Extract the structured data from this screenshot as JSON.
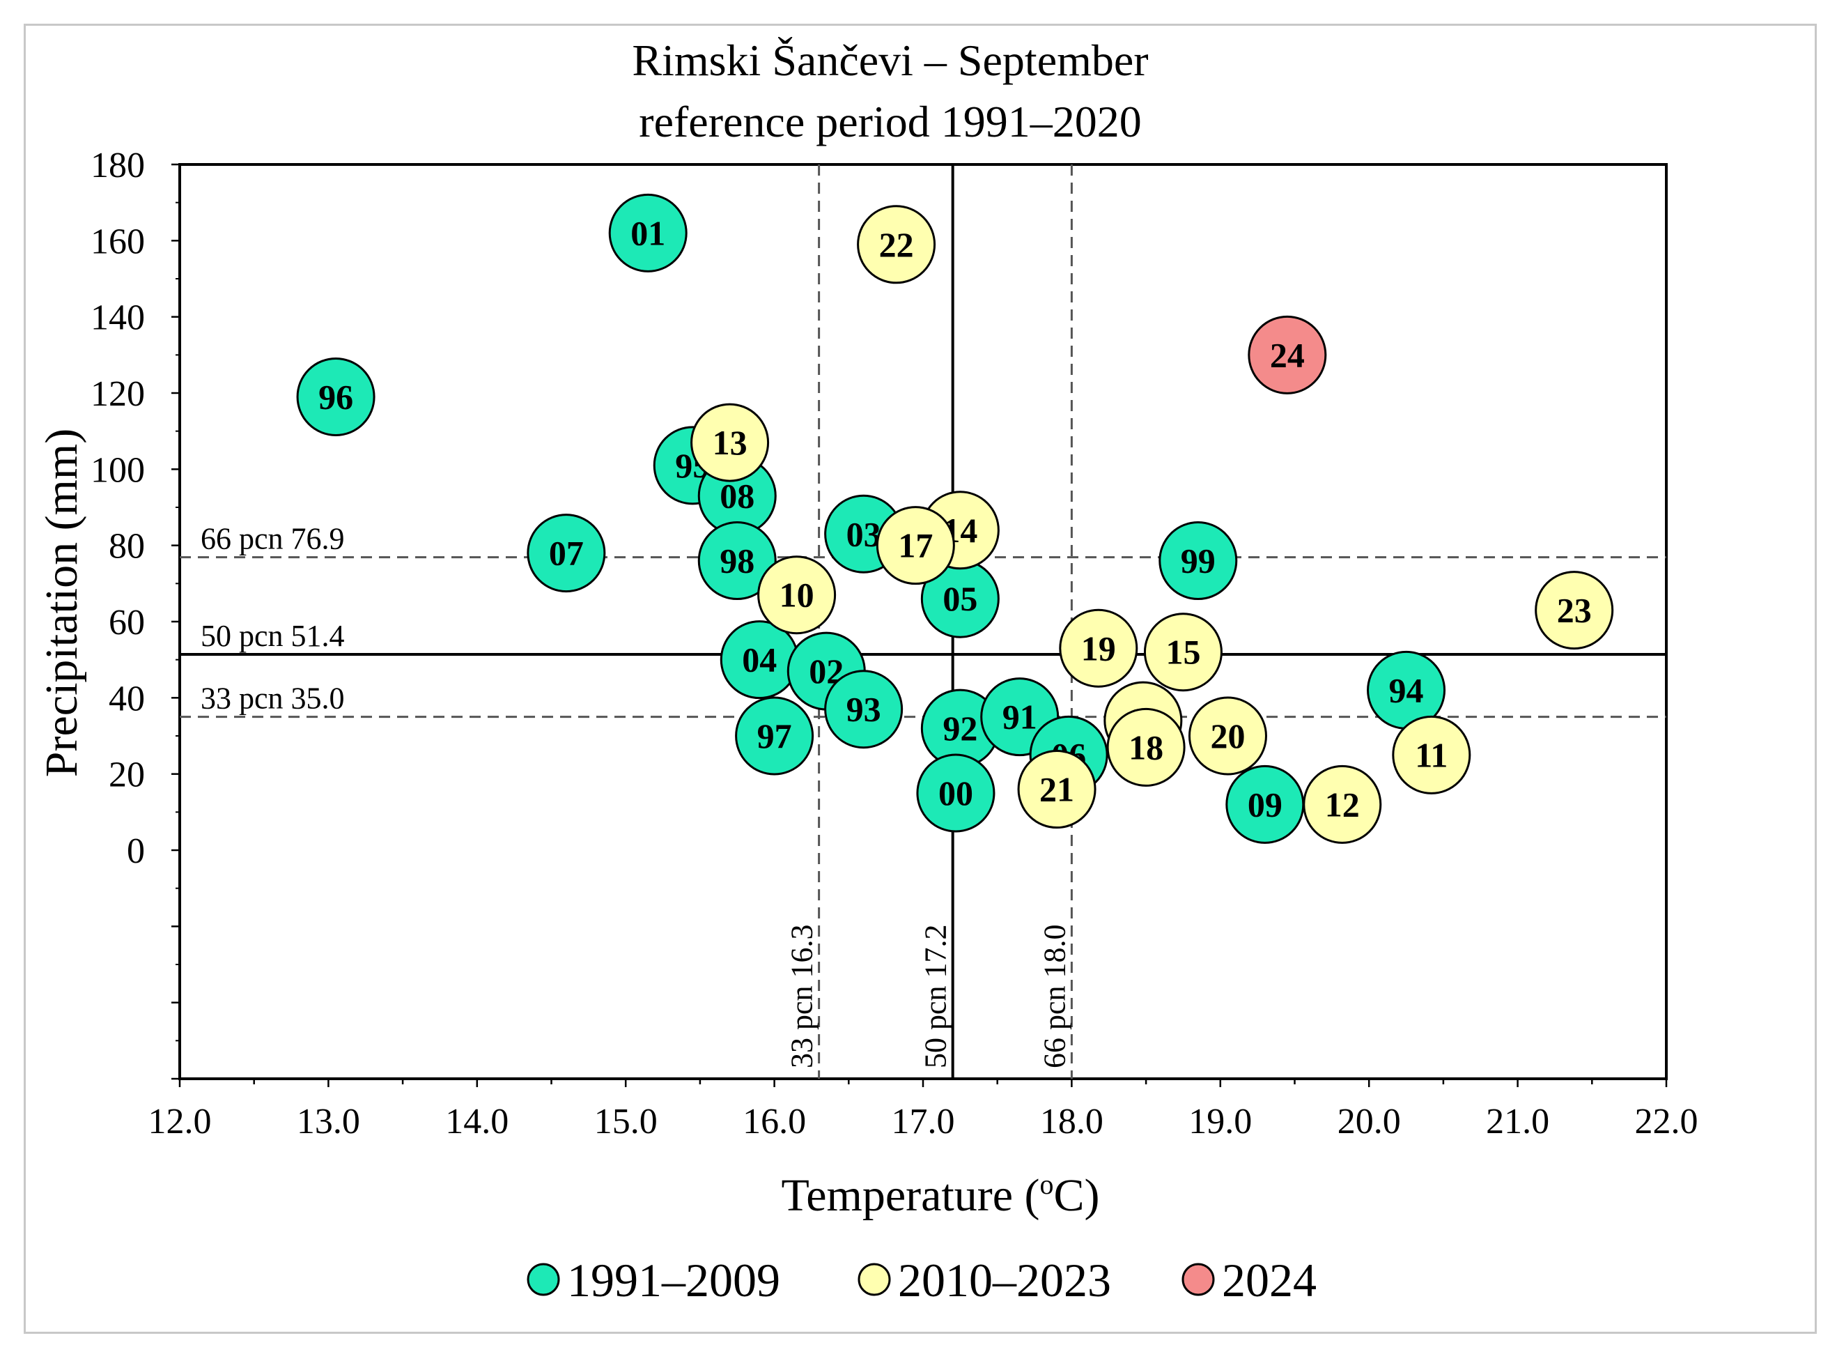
{
  "chart_data": {
    "type": "scatter",
    "title": "Rimski Šančevi – September",
    "subtitle": "reference period 1991–2020",
    "xlabel": "Temperature  (",
    "xlabel_sup": "o",
    "xlabel_end": "C)",
    "ylabel": "Precipitation  (mm)",
    "xlim": [
      12.0,
      22.0
    ],
    "ylim": [
      -60,
      180
    ],
    "x_ticks": [
      "12.0",
      "13.0",
      "14.0",
      "15.0",
      "16.0",
      "17.0",
      "18.0",
      "19.0",
      "20.0",
      "21.0",
      "22.0"
    ],
    "y_ticks": [
      "0",
      "20",
      "40",
      "60",
      "80",
      "100",
      "120",
      "140",
      "160",
      "180"
    ],
    "y_tick_values": [
      0,
      20,
      40,
      60,
      80,
      100,
      120,
      140,
      160,
      180
    ],
    "x_tick_values": [
      12,
      13,
      14,
      15,
      16,
      17,
      18,
      19,
      20,
      21,
      22
    ],
    "percentile_lines": {
      "precipitation": [
        {
          "label": "66  pcn  76.9",
          "value": 76.9,
          "style": "dashed"
        },
        {
          "label": "50  pcn  51.4",
          "value": 51.4,
          "style": "solid"
        },
        {
          "label": "33  pcn  35.0",
          "value": 35.0,
          "style": "dashed"
        }
      ],
      "temperature": [
        {
          "label": "33  pcn  16.3",
          "value": 16.3,
          "style": "dashed"
        },
        {
          "label": "50  pcn  17.2",
          "value": 17.2,
          "style": "solid"
        },
        {
          "label": "66  pcn  18.0",
          "value": 18.0,
          "style": "dashed"
        }
      ]
    },
    "series": [
      {
        "name": "1991–2009",
        "color": "#1de9b6",
        "points": [
          {
            "label": "01",
            "x": 15.15,
            "y": 162
          },
          {
            "label": "96",
            "x": 13.05,
            "y": 119
          },
          {
            "label": "95",
            "x": 15.45,
            "y": 101
          },
          {
            "label": "08",
            "x": 15.75,
            "y": 93
          },
          {
            "label": "07",
            "x": 14.6,
            "y": 78
          },
          {
            "label": "98",
            "x": 15.75,
            "y": 76
          },
          {
            "label": "03",
            "x": 16.6,
            "y": 83
          },
          {
            "label": "05",
            "x": 17.25,
            "y": 66
          },
          {
            "label": "99",
            "x": 18.85,
            "y": 76
          },
          {
            "label": "04",
            "x": 15.9,
            "y": 50
          },
          {
            "label": "02",
            "x": 16.35,
            "y": 47
          },
          {
            "label": "93",
            "x": 16.6,
            "y": 37
          },
          {
            "label": "97",
            "x": 16.0,
            "y": 30
          },
          {
            "label": "92",
            "x": 17.25,
            "y": 32
          },
          {
            "label": "91",
            "x": 17.65,
            "y": 35
          },
          {
            "label": "06",
            "x": 17.98,
            "y": 25
          },
          {
            "label": "00",
            "x": 17.22,
            "y": 15
          },
          {
            "label": "94",
            "x": 20.25,
            "y": 42
          },
          {
            "label": "09",
            "x": 19.3,
            "y": 12
          }
        ]
      },
      {
        "name": "2010–2023",
        "color": "#ffffb0",
        "points": [
          {
            "label": "22",
            "x": 16.82,
            "y": 159
          },
          {
            "label": "13",
            "x": 15.7,
            "y": 107
          },
          {
            "label": "14",
            "x": 17.25,
            "y": 84
          },
          {
            "label": "17",
            "x": 16.95,
            "y": 80
          },
          {
            "label": "10",
            "x": 16.15,
            "y": 67
          },
          {
            "label": "19",
            "x": 18.18,
            "y": 53
          },
          {
            "label": "15",
            "x": 18.75,
            "y": 52
          },
          {
            "label": "16",
            "x": 18.48,
            "y": 34
          },
          {
            "label": "18",
            "x": 18.5,
            "y": 27
          },
          {
            "label": "20",
            "x": 19.05,
            "y": 30
          },
          {
            "label": "21",
            "x": 17.9,
            "y": 16
          },
          {
            "label": "23",
            "x": 21.38,
            "y": 63
          },
          {
            "label": "11",
            "x": 20.42,
            "y": 25
          },
          {
            "label": "12",
            "x": 19.82,
            "y": 12
          }
        ]
      },
      {
        "name": "2024",
        "color": "#f48b8b",
        "points": [
          {
            "label": "24",
            "x": 19.45,
            "y": 130
          }
        ]
      }
    ],
    "legend": [
      {
        "label": "1991–2009",
        "color": "#1de9b6"
      },
      {
        "label": "2010–2023",
        "color": "#ffffb0"
      },
      {
        "label": "2024",
        "color": "#f48b8b"
      }
    ],
    "legend_position": "bottom-center"
  }
}
